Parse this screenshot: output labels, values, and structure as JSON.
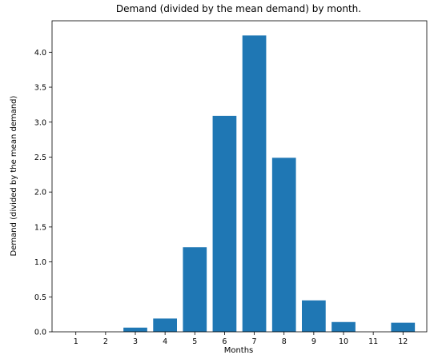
{
  "chart_data": {
    "type": "bar",
    "title": "Demand (divided by the mean demand) by month.",
    "xlabel": "Months",
    "ylabel": "Demand (divided by the mean demand)",
    "categories": [
      "1",
      "2",
      "3",
      "4",
      "5",
      "6",
      "7",
      "8",
      "9",
      "10",
      "11",
      "12"
    ],
    "values": [
      0.0,
      0.0,
      0.06,
      0.19,
      1.21,
      3.09,
      4.24,
      2.49,
      0.45,
      0.14,
      0.0,
      0.13
    ],
    "ylim": [
      0,
      4.45
    ],
    "yticks": [
      "0.0",
      "0.5",
      "1.0",
      "1.5",
      "2.0",
      "2.5",
      "3.0",
      "3.5",
      "4.0"
    ],
    "bar_color": "#1f77b4",
    "grid": false,
    "legend": "none"
  }
}
